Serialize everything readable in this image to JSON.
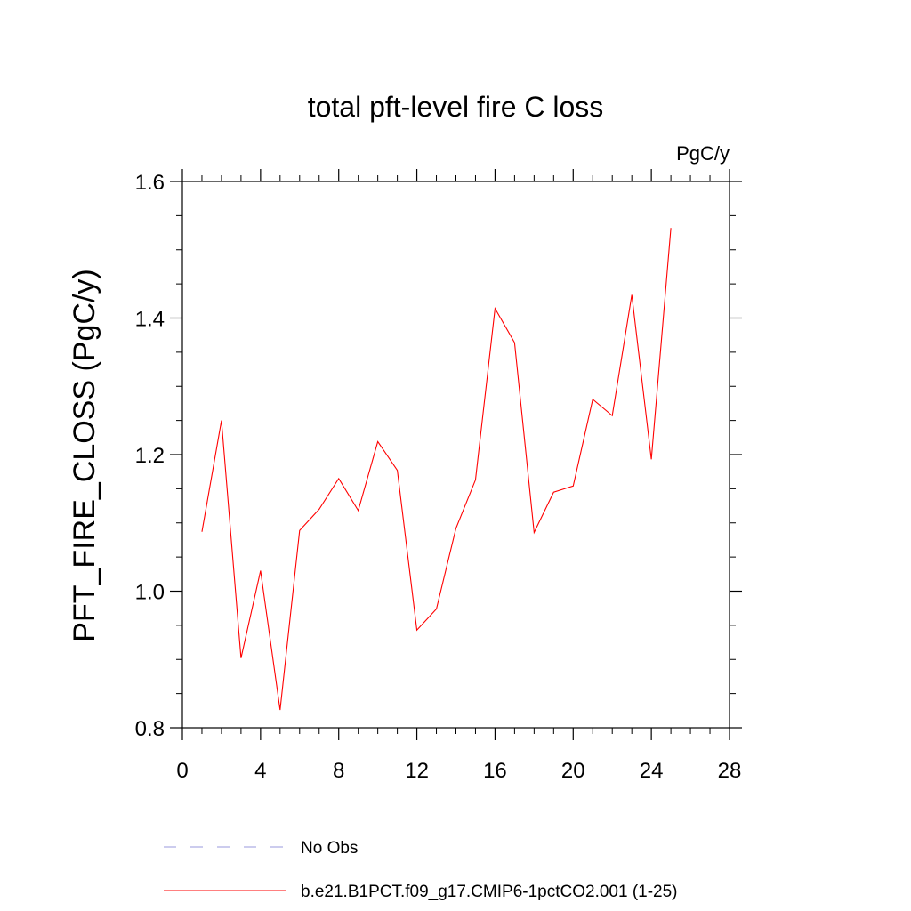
{
  "chart_data": {
    "type": "line",
    "title": "total pft-level fire C loss",
    "units_label": "PgC/y",
    "xlabel": "",
    "ylabel": "PFT_FIRE_CLOSS  (PgC/y)",
    "xlim": [
      0,
      28
    ],
    "ylim": [
      0.8,
      1.6
    ],
    "x_ticks": [
      0,
      4,
      8,
      12,
      16,
      20,
      24,
      28
    ],
    "x_tick_labels": [
      "0",
      "4",
      "8",
      "12",
      "16",
      "20",
      "24",
      "28"
    ],
    "y_ticks": [
      0.8,
      1.0,
      1.2,
      1.4,
      1.6
    ],
    "y_tick_labels": [
      "0.8",
      "1.0",
      "1.2",
      "1.4",
      "1.6"
    ],
    "x_minor_step": 1,
    "y_minor_step": 0.05,
    "grid": false,
    "legend_position": "bottom",
    "series": [
      {
        "name": "b.e21.B1PCT.f09_g17.CMIP6-1pctCO2.001 (1-25)",
        "color": "#ff0000",
        "style": "solid",
        "x": [
          1,
          2,
          3,
          4,
          5,
          6,
          7,
          8,
          9,
          10,
          11,
          12,
          13,
          14,
          15,
          16,
          17,
          18,
          19,
          20,
          21,
          22,
          23,
          24,
          25
        ],
        "y": [
          1.087,
          1.25,
          0.902,
          1.03,
          0.826,
          1.089,
          1.12,
          1.165,
          1.118,
          1.219,
          1.177,
          0.943,
          0.974,
          1.092,
          1.163,
          1.414,
          1.364,
          1.086,
          1.145,
          1.154,
          1.281,
          1.257,
          1.434,
          1.193,
          1.532
        ]
      }
    ],
    "legend": [
      {
        "label": "No Obs",
        "color": "#9999dd",
        "style": "dashed"
      },
      {
        "label": "b.e21.B1PCT.f09_g17.CMIP6-1pctCO2.001 (1-25)",
        "color": "#ff0000",
        "style": "solid"
      }
    ]
  }
}
